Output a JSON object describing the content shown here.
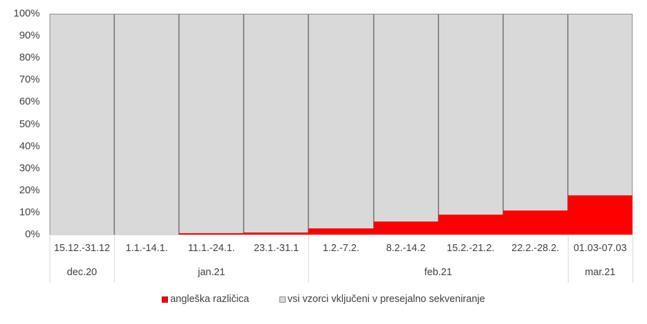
{
  "chart_data": {
    "type": "bar",
    "stacked": true,
    "percent_stacked": true,
    "title": "",
    "xlabel": "",
    "ylabel": "",
    "ylim": [
      0,
      100
    ],
    "y_ticks": [
      "0%",
      "10%",
      "20%",
      "30%",
      "40%",
      "50%",
      "60%",
      "70%",
      "80%",
      "90%",
      "100%"
    ],
    "grid": false,
    "legend_position": "bottom",
    "categories": [
      "15.12.-31.12",
      "1.1.-14.1.",
      "11.1.-24.1.",
      "23.1.-31.1",
      "1.2.-7.2.",
      "8.2.-14.2",
      "15.2.-21.2.",
      "22.2.-28.2.",
      "01.03-07.03"
    ],
    "category_groups": [
      {
        "label": "dec.20",
        "span": 1
      },
      {
        "label": "jan.21",
        "span": 3
      },
      {
        "label": "feb.21",
        "span": 4
      },
      {
        "label": "mar.21",
        "span": 1
      }
    ],
    "series": [
      {
        "name": "angleška različica",
        "color": "#ff0000",
        "values": [
          0,
          0,
          0.6,
          1.0,
          2.8,
          5.8,
          9.0,
          10.9,
          17.8
        ]
      },
      {
        "name": "vsi vzorci vključeni v presejalno sekveniranje",
        "color": "#d9d9d9",
        "values": [
          100,
          100,
          99.4,
          99.0,
          97.2,
          94.2,
          91.0,
          89.1,
          82.2
        ]
      }
    ]
  },
  "colors": {
    "red": "#ff0000",
    "gray": "#d9d9d9",
    "border": "#8a8a8a"
  }
}
